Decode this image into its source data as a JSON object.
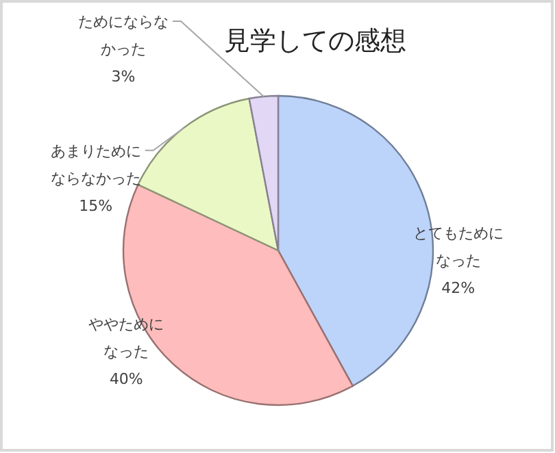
{
  "chart_data": {
    "type": "pie",
    "title": "見学しての感想",
    "categories": [
      "とてもためになった",
      "ややためになった",
      "あまりためにならなかった",
      "ためにならなかった"
    ],
    "values": [
      42,
      40,
      15,
      3
    ],
    "value_labels": [
      "42%",
      "40%",
      "15%",
      "3%"
    ],
    "colors": [
      "#bcd3fa",
      "#ffbcbc",
      "#eaf8c6",
      "#e2d8f5"
    ],
    "legend": false
  }
}
